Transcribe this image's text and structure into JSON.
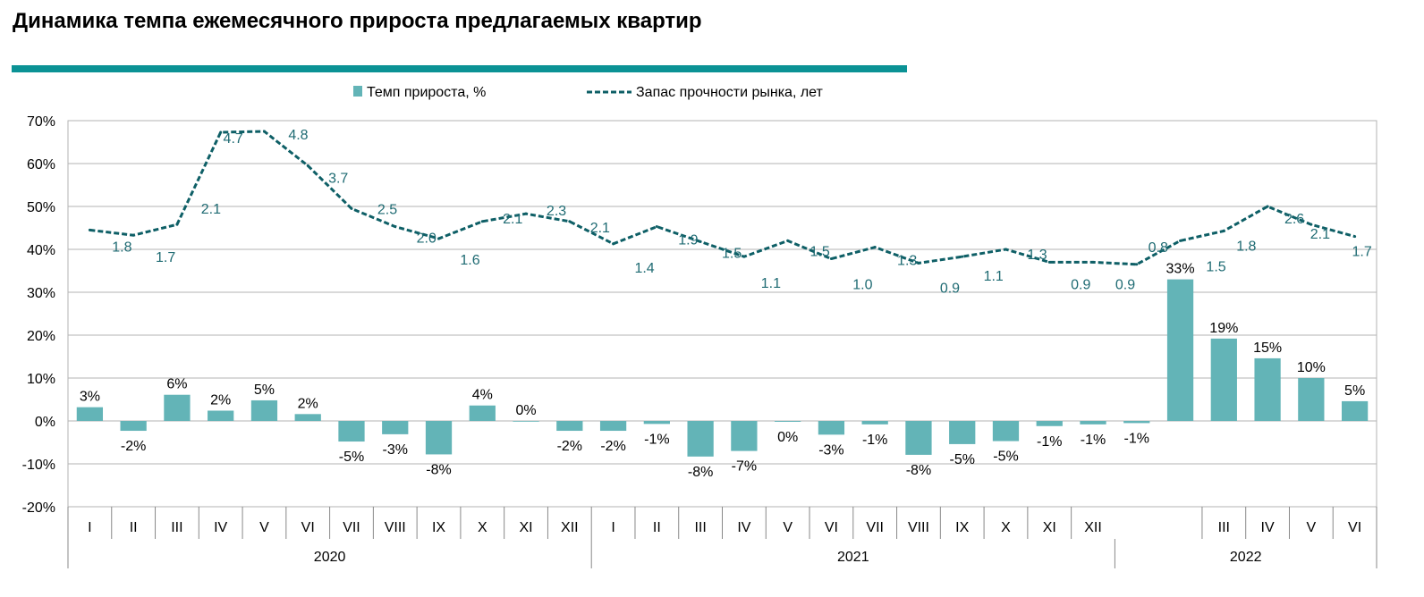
{
  "page_title": "Динамика темпа ежемесячного прироста предлагаемых квартир",
  "colors": {
    "title_bar": "#0b9295",
    "bar": "#63b4b7",
    "line": "#0e5f66",
    "line_label": "#1f6b73",
    "grid": "#b3b3b3",
    "axis": "#888888",
    "text": "#000000"
  },
  "chart_data": {
    "type": "bar+line",
    "title": "Динамика темпа ежемесячного прироста предлагаемых квартир",
    "legend": {
      "placement": "top-center",
      "entries": [
        "Темп прироста, %",
        "Запас прочности рынка, лет"
      ]
    },
    "y_axis": {
      "min": -20,
      "max": 70,
      "step": 10,
      "tick_labels": [
        "-20%",
        "-10%",
        "0%",
        "10%",
        "20%",
        "30%",
        "40%",
        "50%",
        "60%",
        "70%"
      ],
      "grid": true
    },
    "categories": [
      "I",
      "II",
      "III",
      "IV",
      "V",
      "VI",
      "VII",
      "VIII",
      "IX",
      "X",
      "XI",
      "XII",
      "I",
      "II",
      "III",
      "IV",
      "V",
      "VI",
      "VII",
      "VIII",
      "IX",
      "X",
      "XI",
      "XII",
      "",
      "",
      "III",
      "IV",
      "V",
      "VI"
    ],
    "year_groups": [
      {
        "label": "2020",
        "count": 12
      },
      {
        "label": "2021",
        "count": 12
      },
      {
        "label": "2022",
        "count": 6
      }
    ],
    "series": [
      {
        "name": "Темп прироста, %",
        "kind": "bar",
        "values": [
          3.2,
          -2.3,
          6.1,
          2.4,
          4.8,
          1.6,
          -4.8,
          -3.1,
          -7.8,
          3.6,
          0.0,
          -2.3,
          -2.3,
          -0.7,
          -8.3,
          -7.0,
          -0.2,
          -3.2,
          -0.8,
          -7.9,
          -5.4,
          -4.7,
          -1.2,
          -0.8,
          -0.5,
          33.0,
          19.2,
          14.6,
          10.0,
          4.6
        ],
        "labels": [
          "3%",
          "-2%",
          "6%",
          "2%",
          "5%",
          "2%",
          "-5%",
          "-3%",
          "-8%",
          "4%",
          "0%",
          "-2%",
          "-2%",
          "-1%",
          "-8%",
          "-7%",
          "0%",
          "-3%",
          "-1%",
          "-8%",
          "-5%",
          "-5%",
          "-1%",
          "-1%",
          "-1%",
          "33%",
          "19%",
          "15%",
          "10%",
          "5%"
        ]
      },
      {
        "name": "Запас прочности рынка, лет",
        "kind": "line",
        "style": "dashed",
        "values": [
          1.8,
          1.7,
          2.1,
          4.7,
          4.8,
          3.7,
          2.5,
          2.0,
          1.6,
          2.1,
          2.3,
          2.1,
          1.4,
          1.9,
          1.5,
          1.1,
          1.5,
          1.0,
          1.3,
          0.9,
          1.1,
          1.3,
          0.9,
          0.9,
          0.8,
          1.5,
          1.8,
          2.6,
          2.1,
          1.7
        ],
        "labels": [
          "1.8",
          "1.7",
          "2.1",
          "4.7",
          "4.8",
          "3.7",
          "2.5",
          "2.0",
          "1.6",
          "2.1",
          "2.3",
          "2.1",
          "1.4",
          "1.9",
          "1.5",
          "1.1",
          "1.5",
          "1.0",
          "1.3",
          "0.9",
          "1.1",
          "1.3",
          "0.9",
          "0.9",
          "0.8",
          "1.5",
          "1.8",
          "2.6",
          "2.1",
          "1.7"
        ],
        "plot_position_percent": [
          44.5,
          43.3,
          45.8,
          67.3,
          67.5,
          59.5,
          49.5,
          45.3,
          42.5,
          46.5,
          48.3,
          46.5,
          41.3,
          45.3,
          41.8,
          38.3,
          42.0,
          37.8,
          40.5,
          36.8,
          38.3,
          40.0,
          37.0,
          37.0,
          36.5,
          42.0,
          44.3,
          50.0,
          45.8,
          43.0
        ]
      }
    ]
  }
}
